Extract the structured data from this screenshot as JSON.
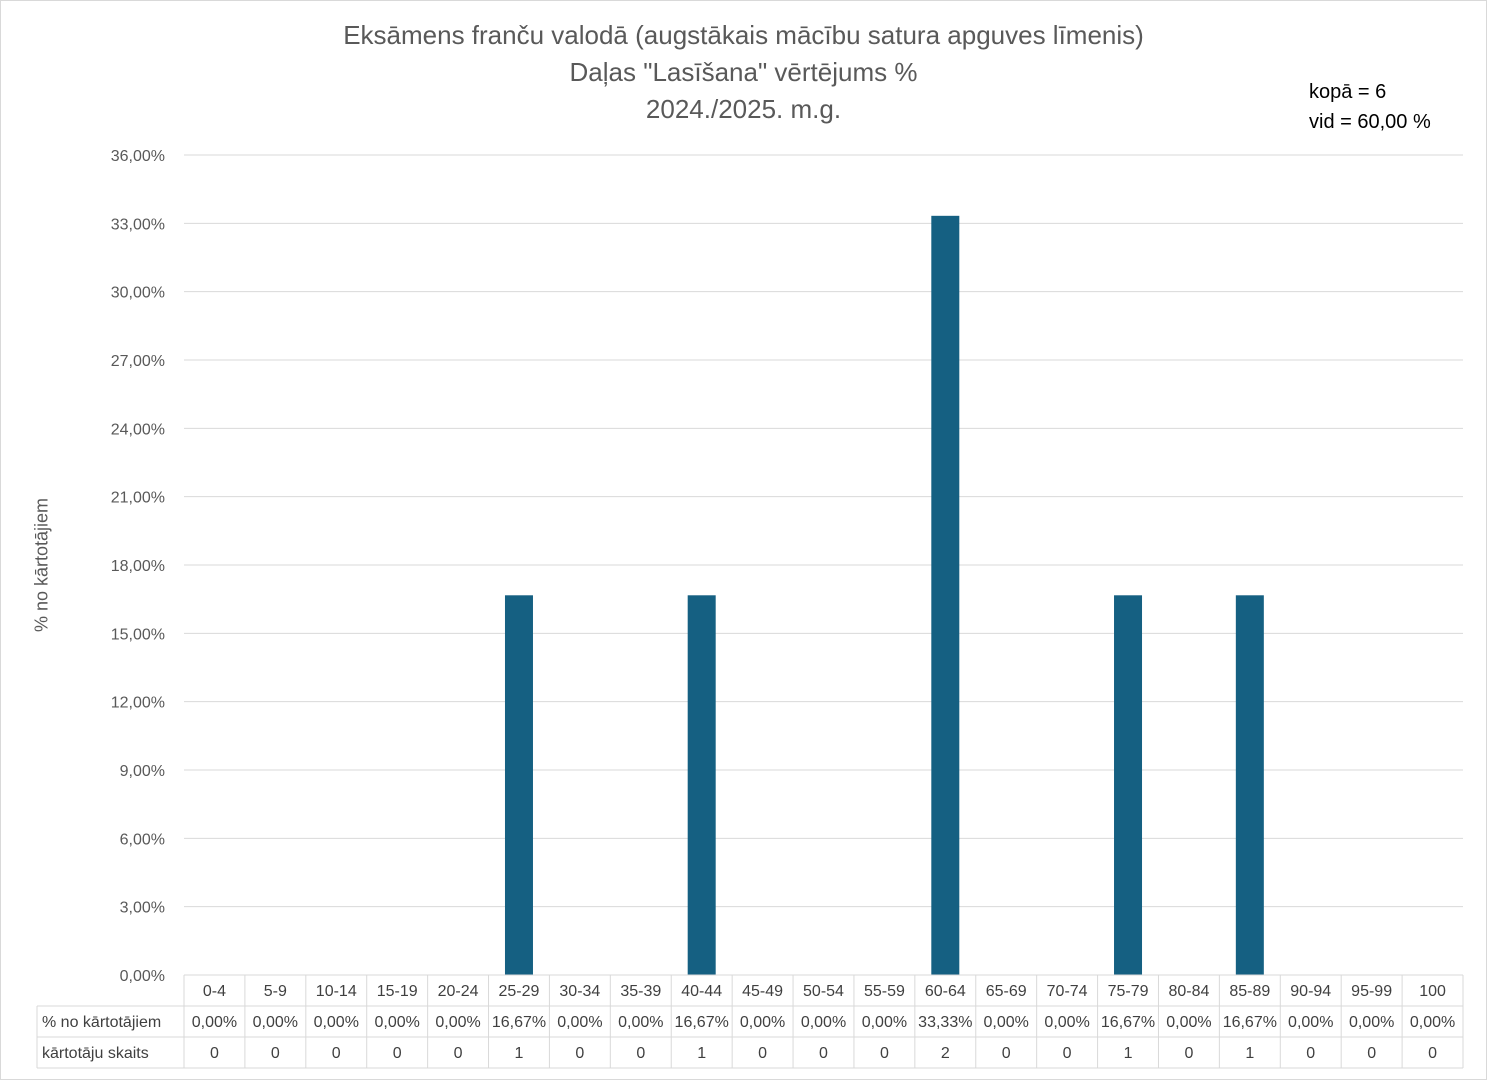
{
  "chart_data": {
    "type": "bar",
    "title": [
      "Eksāmens franču valodā (augstākais mācību satura apguves līmenis)",
      "Daļas \"Lasīšana\" vērtējums %",
      "2024./2025. m.g."
    ],
    "annotations": [
      "kopā = 6",
      "vid = 60,00 %"
    ],
    "ylabel": "% no kārtotājiem",
    "ylim": [
      0,
      36
    ],
    "ytick_step": 3,
    "ytick_labels": [
      "0,00%",
      "3,00%",
      "6,00%",
      "9,00%",
      "12,00%",
      "15,00%",
      "18,00%",
      "21,00%",
      "24,00%",
      "27,00%",
      "30,00%",
      "33,00%",
      "36,00%"
    ],
    "grid": true,
    "bar_color": "#156082",
    "categories": [
      "0-4",
      "5-9",
      "10-14",
      "15-19",
      "20-24",
      "25-29",
      "30-34",
      "35-39",
      "40-44",
      "45-49",
      "50-54",
      "55-59",
      "60-64",
      "65-69",
      "70-74",
      "75-79",
      "80-84",
      "85-89",
      "90-94",
      "95-99",
      "100"
    ],
    "values": [
      0,
      0,
      0,
      0,
      0,
      16.67,
      0,
      0,
      16.67,
      0,
      0,
      0,
      33.33,
      0,
      0,
      16.67,
      0,
      16.67,
      0,
      0,
      0
    ],
    "table": {
      "rows": [
        {
          "label": "% no kārtotājiem",
          "cells": [
            "0,00%",
            "0,00%",
            "0,00%",
            "0,00%",
            "0,00%",
            "16,67%",
            "0,00%",
            "0,00%",
            "16,67%",
            "0,00%",
            "0,00%",
            "0,00%",
            "33,33%",
            "0,00%",
            "0,00%",
            "16,67%",
            "0,00%",
            "16,67%",
            "0,00%",
            "0,00%",
            "0,00%"
          ]
        },
        {
          "label": "kārtotāju skaits",
          "cells": [
            "0",
            "0",
            "0",
            "0",
            "0",
            "1",
            "0",
            "0",
            "1",
            "0",
            "0",
            "0",
            "2",
            "0",
            "0",
            "1",
            "0",
            "1",
            "0",
            "0",
            "0"
          ]
        }
      ]
    }
  }
}
